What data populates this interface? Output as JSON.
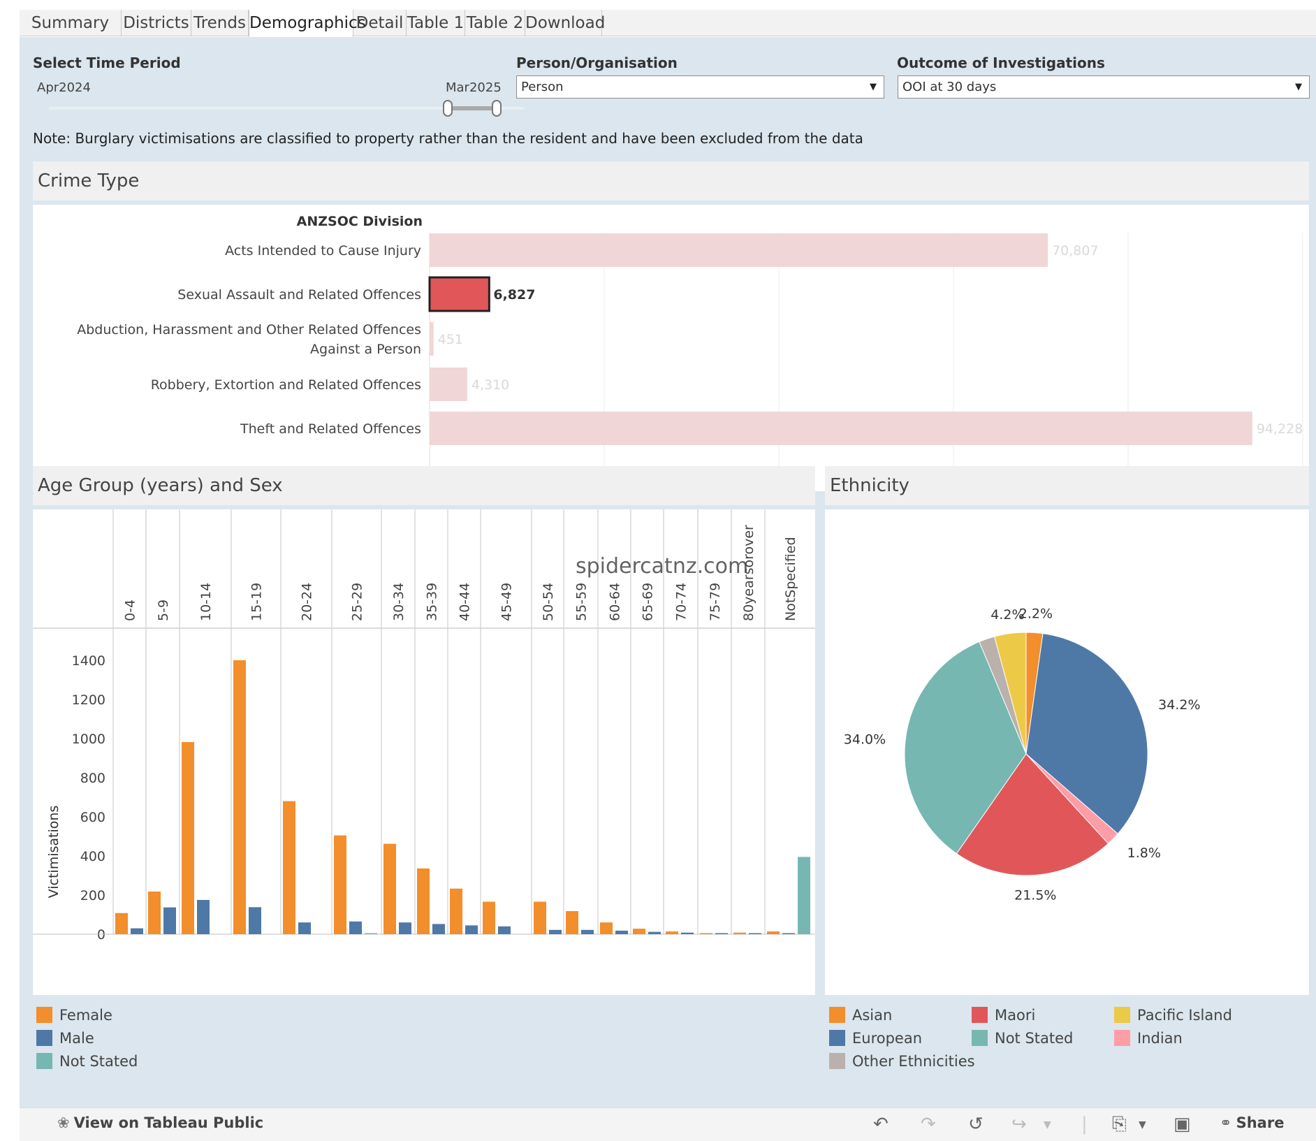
{
  "tabs": [
    {
      "label": "Summary",
      "active": false
    },
    {
      "label": "Districts",
      "active": false
    },
    {
      "label": "Trends",
      "active": false
    },
    {
      "label": "Demographics",
      "active": true
    },
    {
      "label": "Detail",
      "active": false
    },
    {
      "label": "Table 1",
      "active": false
    },
    {
      "label": "Table 2",
      "active": false
    },
    {
      "label": "Download",
      "active": false
    }
  ],
  "filters": {
    "time_period": {
      "label": "Select Time Period",
      "start": "Apr2024",
      "end": "Mar2025"
    },
    "person_org": {
      "label": "Person/Organisation",
      "value": "Person"
    },
    "outcome": {
      "label": "Outcome of Investigations",
      "value": "OOI at 30 days"
    }
  },
  "note": "Note: Burglary victimisations are classified to property rather than the resident and have been excluded from the data",
  "crime_type": {
    "title": "Crime Type",
    "header": "ANZSOC Division"
  },
  "age_panel": {
    "title": "Age Group (years) and Sex",
    "ylabel": "Victimisations"
  },
  "ethnicity_panel": {
    "title": "Ethnicity"
  },
  "watermark": "spidercatnz.com",
  "chart_data": [
    {
      "type": "bar",
      "orientation": "horizontal",
      "title": "Crime Type",
      "categories": [
        "Acts Intended to Cause Injury",
        "Sexual Assault and Related Offences",
        "Abduction, Harassment and Other Related Offences Against a Person",
        "Robbery, Extortion and Related Offences",
        "Theft and Related Offences"
      ],
      "category_lines": [
        [
          "Acts Intended to Cause Injury"
        ],
        [
          "Sexual Assault and Related Offences"
        ],
        [
          "Abduction, Harassment and Other Related Offences",
          "Against a Person"
        ],
        [
          "Robbery, Extortion and Related Offences"
        ],
        [
          "Theft and Related Offences"
        ]
      ],
      "values": [
        70807,
        6827,
        451,
        4310,
        94228
      ],
      "value_labels": [
        "70,807",
        "6,827",
        "451",
        "4,310",
        "94,228"
      ],
      "selected": "Sexual Assault and Related Offences",
      "xlim": [
        0,
        100000
      ],
      "colors": {
        "selected": "#e15759",
        "unselected": "#f0d6d7"
      }
    },
    {
      "type": "bar",
      "title": "Age Group (years) and Sex",
      "ylabel": "Victimisations",
      "ylim": [
        0,
        1400
      ],
      "yticks": [
        0,
        200,
        400,
        600,
        800,
        1000,
        1200,
        1400
      ],
      "categories": [
        "0-4",
        "5-9",
        "10-14",
        "15-19",
        "20-24",
        "25-29",
        "30-34",
        "35-39",
        "40-44",
        "45-49",
        "50-54",
        "55-59",
        "60-64",
        "65-69",
        "70-74",
        "75-79",
        "80yearsorover",
        "NotSpecified"
      ],
      "series": [
        {
          "name": "Female",
          "color": "#f28e2b",
          "values": [
            108,
            218,
            982,
            1400,
            680,
            505,
            462,
            336,
            233,
            166,
            166,
            118,
            60,
            28,
            14,
            5,
            8,
            14
          ]
        },
        {
          "name": "Male",
          "color": "#4e79a7",
          "values": [
            30,
            137,
            175,
            138,
            60,
            65,
            60,
            52,
            45,
            40,
            22,
            22,
            18,
            12,
            8,
            2,
            2,
            4
          ]
        },
        {
          "name": "Not Stated",
          "color": "#76b7b2",
          "values": [
            0,
            0,
            0,
            0,
            0,
            4,
            0,
            0,
            0,
            0,
            0,
            0,
            0,
            0,
            0,
            0,
            0,
            395
          ]
        }
      ],
      "legend": [
        "Female",
        "Male",
        "Not Stated"
      ]
    },
    {
      "type": "pie",
      "title": "Ethnicity",
      "slices": [
        {
          "name": "Asian",
          "value": 2.2,
          "label": "2.2%",
          "color": "#f28e2b"
        },
        {
          "name": "European",
          "value": 34.2,
          "label": "34.2%",
          "color": "#4e79a7"
        },
        {
          "name": "Indian",
          "value": 1.8,
          "label": "1.8%",
          "color": "#ff9da7"
        },
        {
          "name": "Maori",
          "value": 21.5,
          "label": "21.5%",
          "color": "#e15759"
        },
        {
          "name": "Not Stated",
          "value": 34.0,
          "label": "34.0%",
          "color": "#76b7b2"
        },
        {
          "name": "Other Ethnicities",
          "value": 2.1,
          "label": "",
          "color": "#bab0ac"
        },
        {
          "name": "Pacific Island",
          "value": 4.2,
          "label": "4.2%",
          "color": "#edc948"
        }
      ],
      "legend": [
        "Asian",
        "Maori",
        "Pacific Island",
        "European",
        "Not Stated",
        "Indian",
        "Other Ethnicities"
      ]
    }
  ],
  "footer": {
    "view_label": "View on Tableau Public",
    "share_label": "Share"
  }
}
